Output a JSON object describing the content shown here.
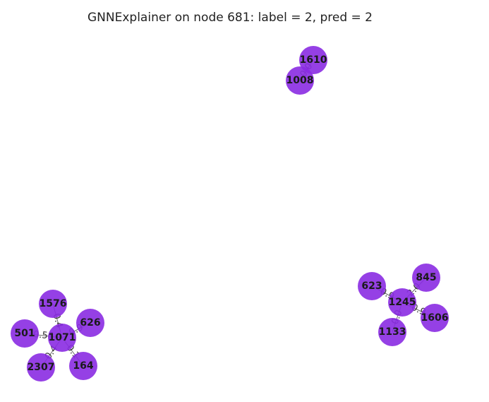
{
  "figure": {
    "title": "GNNExplainer on node 681: label = 2, pred = 2",
    "node_color": "#8a2be2"
  },
  "graph": {
    "nodes": [
      {
        "id": "1610"
      },
      {
        "id": "1008"
      },
      {
        "id": "845"
      },
      {
        "id": "623"
      },
      {
        "id": "1245"
      },
      {
        "id": "1606"
      },
      {
        "id": "1133"
      },
      {
        "id": "1576"
      },
      {
        "id": "626"
      },
      {
        "id": "501"
      },
      {
        "id": "1071"
      },
      {
        "id": "2307"
      },
      {
        "id": "164"
      }
    ],
    "edges": [
      {
        "source": "1610",
        "target": "1008",
        "label": "0.0"
      },
      {
        "source": "1245",
        "target": "845",
        "label": "2.0"
      },
      {
        "source": "1245",
        "target": "623",
        "label": "0.9"
      },
      {
        "source": "1245",
        "target": "1606",
        "label": "0.9"
      },
      {
        "source": "1245",
        "target": "1133",
        "label": "0.0"
      },
      {
        "source": "1071",
        "target": "1576",
        "label": "0.4"
      },
      {
        "source": "1071",
        "target": "626",
        "label": "0.9"
      },
      {
        "source": "1071",
        "target": "501",
        "label": "0.56"
      },
      {
        "source": "1071",
        "target": "2307",
        "label": "0.4"
      },
      {
        "source": "1071",
        "target": "164",
        "label": "0.1"
      }
    ]
  }
}
